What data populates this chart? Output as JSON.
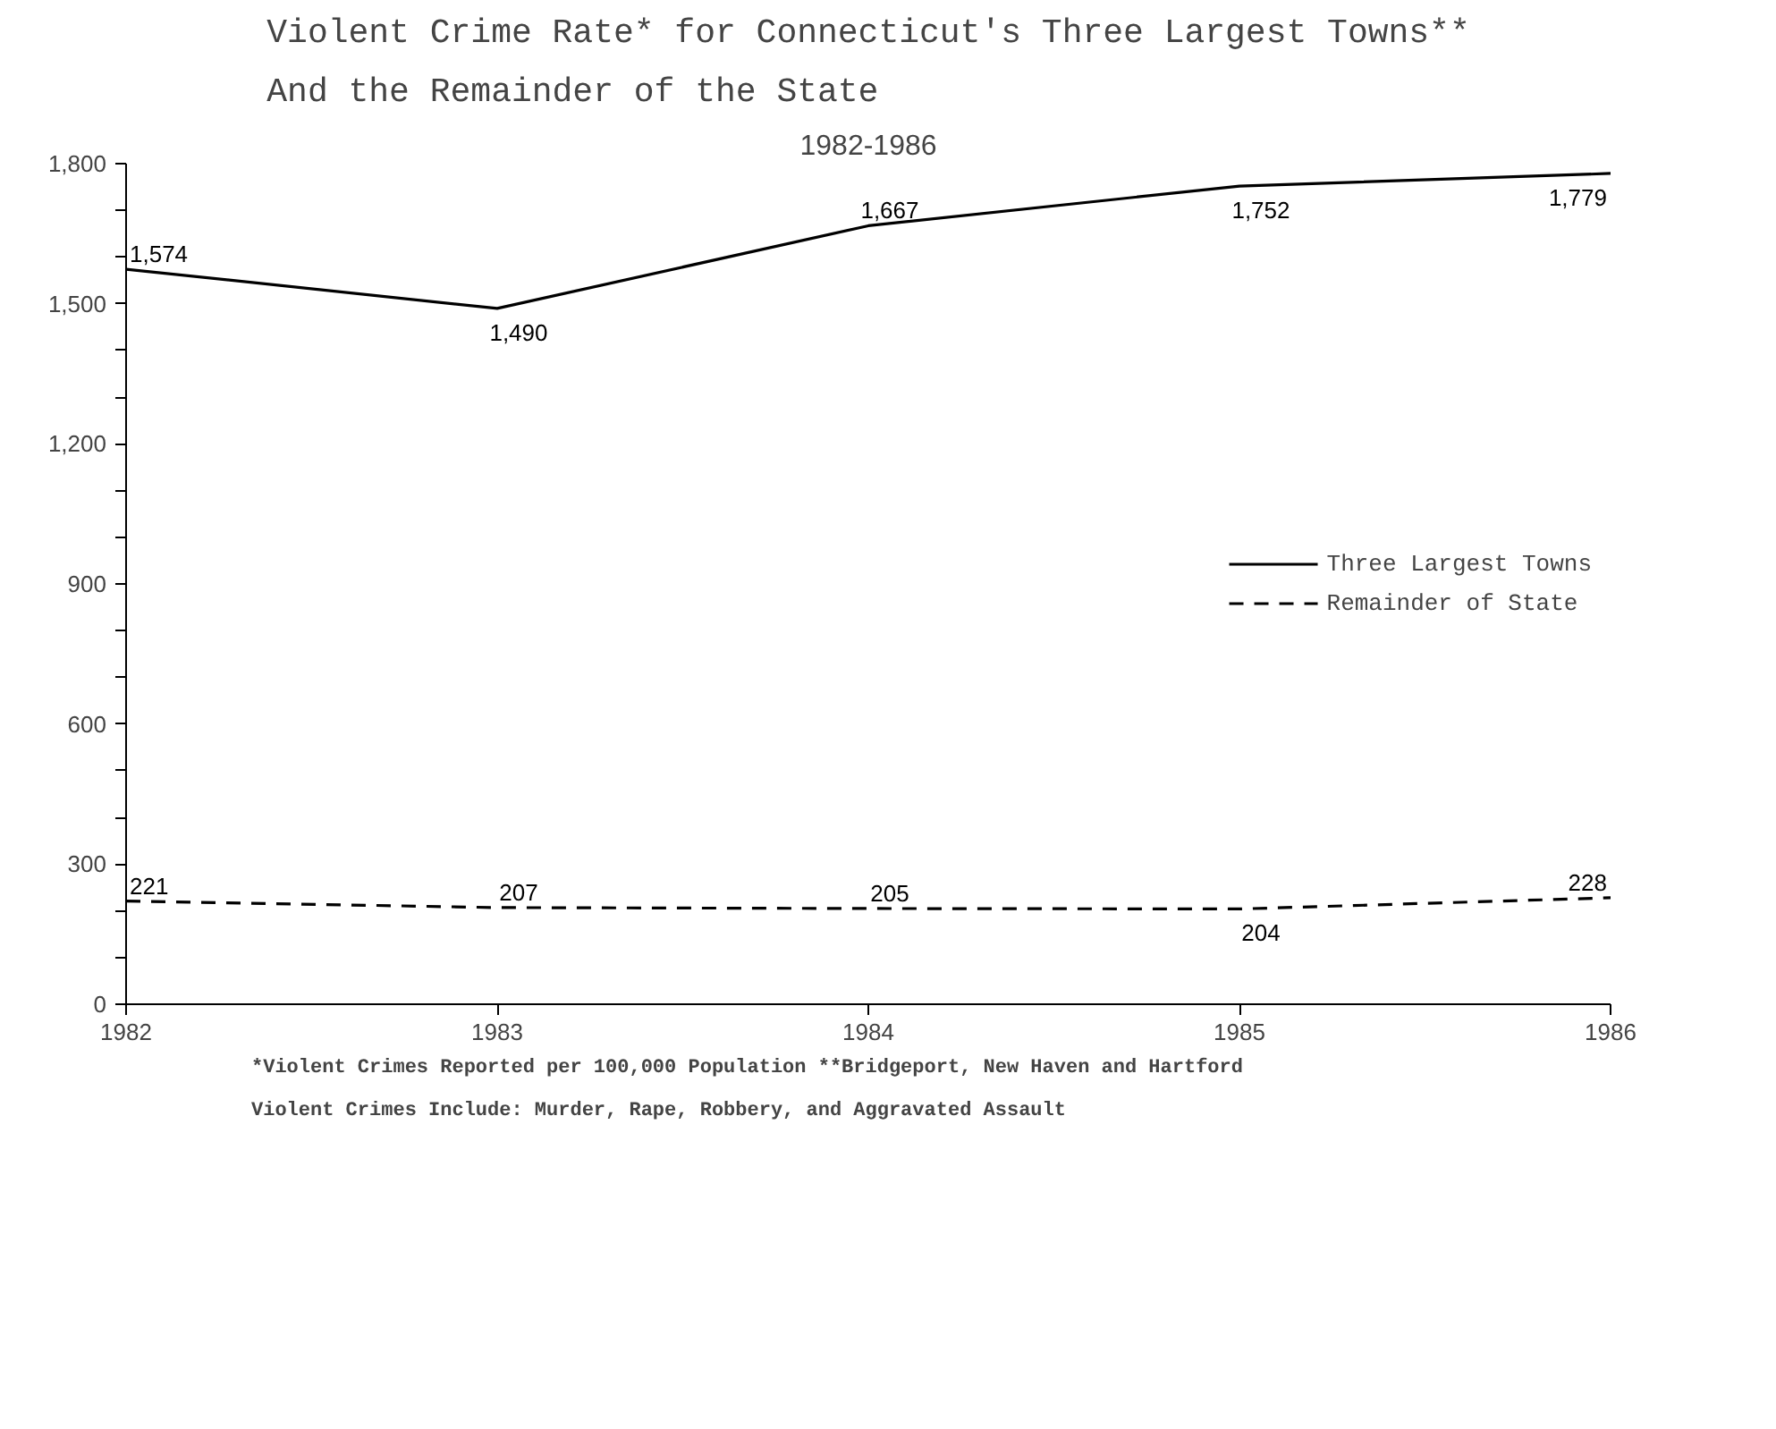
{
  "chart_data": {
    "type": "line",
    "title": "Violent Crime Rate* for Connecticut's Three Largest Towns**\nAnd the Remainder of the State",
    "subtitle": "1982-1986",
    "x": [
      1982,
      1983,
      1984,
      1985,
      1986
    ],
    "xlim": [
      1982,
      1986
    ],
    "xticks": [
      1982,
      1983,
      1984,
      1985,
      1986
    ],
    "ylim": [
      0,
      1800
    ],
    "yticks": [
      0,
      {
        "value": 100,
        "label": null
      },
      {
        "value": 200,
        "label": null
      },
      300,
      {
        "value": 400,
        "label": null
      },
      {
        "value": 500,
        "label": null
      },
      600,
      {
        "value": 700,
        "label": null
      },
      {
        "value": 800,
        "label": null
      },
      900,
      {
        "value": 1000,
        "label": null
      },
      {
        "value": 1100,
        "label": null
      },
      {
        "value": 1200,
        "label": "1,200"
      },
      {
        "value": 1300,
        "label": null
      },
      {
        "value": 1400,
        "label": null
      },
      {
        "value": 1500,
        "label": "1,500"
      },
      {
        "value": 1600,
        "label": null
      },
      {
        "value": 1700,
        "label": null
      },
      {
        "value": 1800,
        "label": "1,800"
      }
    ],
    "series": [
      {
        "name": "Three Largest Towns",
        "color": "#000000",
        "line_style": "solid",
        "values": [
          1574,
          1490,
          1667,
          1752,
          1779
        ],
        "value_labels": [
          "1,574",
          "1,490",
          "1,667",
          "1,752",
          "1,779"
        ]
      },
      {
        "name": "Remainder of State",
        "color": "#000000",
        "line_style": "dashed",
        "values": [
          221,
          207,
          205,
          204,
          228
        ],
        "value_labels": [
          "221",
          "207",
          "205",
          "204",
          "228"
        ]
      }
    ],
    "legend": "right",
    "grid": false,
    "marker": "none",
    "annotations": [
      "*Violent Crimes Reported per 100,000 Population     **Bridgeport, New Haven and Hartford",
      "Violent Crimes Include:  Murder, Rape, Robbery, and Aggravated Assault"
    ]
  }
}
